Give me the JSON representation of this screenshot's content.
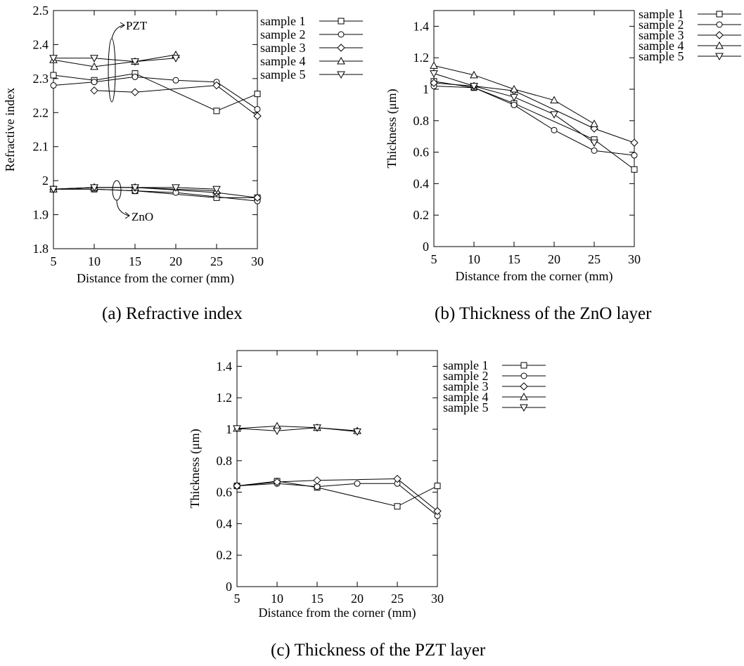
{
  "chart_data": [
    {
      "type": "line",
      "caption": "(a) Refractive index",
      "xlabel": "Distance from the corner (mm)",
      "ylabel": "Refractive index",
      "xlim": [
        5,
        30
      ],
      "ylim": [
        1.8,
        2.5
      ],
      "x_ticks": [
        "5",
        "10",
        "15",
        "20",
        "25",
        "30"
      ],
      "y_ticks": [
        "1.8",
        "1.9",
        "2",
        "2.1",
        "2.2",
        "2.3",
        "2.4",
        "2.5"
      ],
      "grid": false,
      "legend_position": "right",
      "legend": [
        "sample 1",
        "sample 2",
        "sample 3",
        "sample 4",
        "sample 5"
      ],
      "annotations": [
        "PZT",
        "ZnO"
      ],
      "series": [
        {
          "name": "sample 1",
          "marker": "square",
          "x": [
            5,
            10,
            15,
            25,
            30
          ],
          "y": [
            2.31,
            2.295,
            2.315,
            2.205,
            2.255
          ]
        },
        {
          "name": "sample 2",
          "marker": "circle",
          "x": [
            5,
            10,
            15,
            20,
            25,
            30
          ],
          "y": [
            2.28,
            2.29,
            2.305,
            2.295,
            2.29,
            2.21
          ]
        },
        {
          "name": "sample 3",
          "marker": "diamond",
          "x": [
            10,
            15,
            25,
            30
          ],
          "y": [
            2.265,
            2.26,
            2.28,
            2.19
          ]
        },
        {
          "name": "sample 4",
          "marker": "triangle-up",
          "x": [
            5,
            10,
            15,
            20
          ],
          "y": [
            2.355,
            2.335,
            2.35,
            2.37
          ]
        },
        {
          "name": "sample 5",
          "marker": "triangle-down",
          "x": [
            5,
            10,
            15,
            20
          ],
          "y": [
            2.36,
            2.36,
            2.35,
            2.36
          ]
        },
        {
          "name": "sample 1",
          "marker": "square",
          "x": [
            5,
            10,
            15,
            25,
            30
          ],
          "y": [
            1.975,
            1.975,
            1.97,
            1.95,
            1.95
          ]
        },
        {
          "name": "sample 2",
          "marker": "circle",
          "x": [
            5,
            10,
            15,
            20,
            30
          ],
          "y": [
            1.975,
            1.975,
            1.97,
            1.965,
            1.94
          ]
        },
        {
          "name": "sample 3",
          "marker": "diamond",
          "x": [
            5,
            10,
            15,
            25,
            30
          ],
          "y": [
            1.975,
            1.98,
            1.98,
            1.965,
            1.95
          ]
        },
        {
          "name": "sample 4",
          "marker": "triangle-up",
          "x": [
            5,
            10,
            15,
            25
          ],
          "y": [
            1.975,
            1.98,
            1.98,
            1.97
          ]
        },
        {
          "name": "sample 5",
          "marker": "triangle-down",
          "x": [
            5,
            10,
            15,
            20,
            25
          ],
          "y": [
            1.975,
            1.98,
            1.98,
            1.98,
            1.975
          ]
        }
      ]
    },
    {
      "type": "line",
      "caption": "(b) Thickness of the ZnO layer",
      "xlabel": "Distance from the corner (mm)",
      "ylabel": "Thickness (μm)",
      "xlim": [
        5,
        30
      ],
      "ylim": [
        0,
        1.5
      ],
      "x_ticks": [
        "5",
        "10",
        "15",
        "20",
        "25",
        "30"
      ],
      "y_ticks": [
        "0",
        "0.2",
        "0.4",
        "0.6",
        "0.8",
        "1",
        "1.2",
        "1.4"
      ],
      "grid": false,
      "legend_position": "right",
      "legend": [
        "sample 1",
        "sample 2",
        "sample 3",
        "sample 4",
        "sample 5"
      ],
      "annotations": [],
      "series": [
        {
          "name": "sample 1",
          "marker": "square",
          "x": [
            5,
            10,
            15,
            25,
            30
          ],
          "y": [
            1.05,
            1.01,
            0.91,
            0.68,
            0.49
          ]
        },
        {
          "name": "sample 2",
          "marker": "circle",
          "x": [
            5,
            10,
            15,
            20,
            25,
            30
          ],
          "y": [
            1.02,
            1.01,
            0.9,
            0.74,
            0.61,
            0.58
          ]
        },
        {
          "name": "sample 3",
          "marker": "diamond",
          "x": [
            5,
            10,
            15,
            25,
            30
          ],
          "y": [
            1.04,
            1.02,
            0.99,
            0.75,
            0.66
          ]
        },
        {
          "name": "sample 4",
          "marker": "triangle-up",
          "x": [
            5,
            10,
            15,
            20,
            25
          ],
          "y": [
            1.15,
            1.09,
            1.0,
            0.93,
            0.78
          ]
        },
        {
          "name": "sample 5",
          "marker": "triangle-down",
          "x": [
            5,
            10,
            15,
            20,
            25
          ],
          "y": [
            1.1,
            1.02,
            0.95,
            0.84,
            0.66
          ]
        }
      ]
    },
    {
      "type": "line",
      "caption": "(c) Thickness of the PZT layer",
      "xlabel": "Distance from the corner (mm)",
      "ylabel": "Thickness (μm)",
      "xlim": [
        5,
        30
      ],
      "ylim": [
        0,
        1.5
      ],
      "x_ticks": [
        "5",
        "10",
        "15",
        "20",
        "25",
        "30"
      ],
      "y_ticks": [
        "0",
        "0.2",
        "0.4",
        "0.6",
        "0.8",
        "1",
        "1.2",
        "1.4"
      ],
      "grid": false,
      "legend_position": "right",
      "legend": [
        "sample 1",
        "sample 2",
        "sample 3",
        "sample 4",
        "sample 5"
      ],
      "annotations": [],
      "series": [
        {
          "name": "sample 1",
          "marker": "square",
          "x": [
            5,
            10,
            15,
            25,
            30
          ],
          "y": [
            0.64,
            0.67,
            0.63,
            0.51,
            0.64
          ]
        },
        {
          "name": "sample 2",
          "marker": "circle",
          "x": [
            5,
            10,
            15,
            20,
            25,
            30
          ],
          "y": [
            0.64,
            0.655,
            0.635,
            0.655,
            0.655,
            0.45
          ]
        },
        {
          "name": "sample 3",
          "marker": "diamond",
          "x": [
            5,
            10,
            15,
            25,
            30
          ],
          "y": [
            0.64,
            0.665,
            0.675,
            0.685,
            0.48
          ]
        },
        {
          "name": "sample 4",
          "marker": "triangle-up",
          "x": [
            5,
            10,
            15,
            20
          ],
          "y": [
            1.005,
            1.02,
            1.01,
            0.99
          ]
        },
        {
          "name": "sample 5",
          "marker": "triangle-down",
          "x": [
            5,
            10,
            15,
            20
          ],
          "y": [
            1.005,
            0.99,
            1.01,
            0.985
          ]
        }
      ]
    }
  ]
}
